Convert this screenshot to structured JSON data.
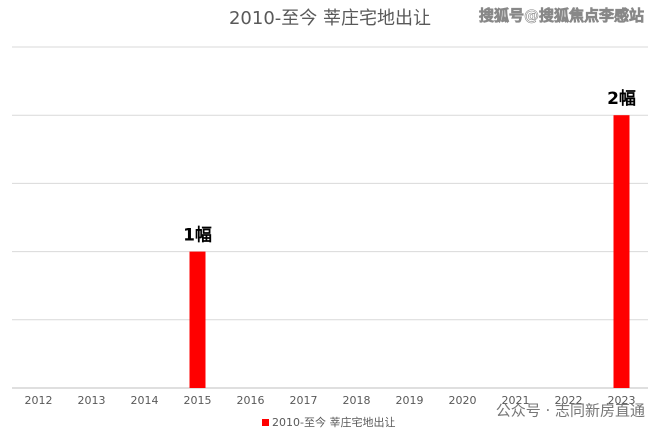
{
  "chart_data": {
    "type": "bar",
    "title": "2010-至今 莘庄宅地出让",
    "categories": [
      "2012",
      "2013",
      "2014",
      "2015",
      "2016",
      "2017",
      "2018",
      "2019",
      "2020",
      "2021",
      "2022",
      "2023"
    ],
    "series": [
      {
        "name": "2010-至今 莘庄宅地出让",
        "color": "#ff0000",
        "values": [
          0,
          0,
          0,
          1,
          0,
          0,
          0,
          0,
          0,
          0,
          0,
          2
        ],
        "value_labels": [
          null,
          null,
          null,
          "1幅",
          null,
          null,
          null,
          null,
          null,
          null,
          null,
          "2幅"
        ]
      }
    ],
    "ylim": [
      0,
      2.5
    ],
    "yticks": [
      0,
      0.5,
      1,
      1.5,
      2,
      2.5
    ],
    "grid": true,
    "legend": "bottom",
    "annotations": [
      "搜狐号@搜狐焦点李感站",
      "公众号 · 志同新房直通"
    ]
  }
}
